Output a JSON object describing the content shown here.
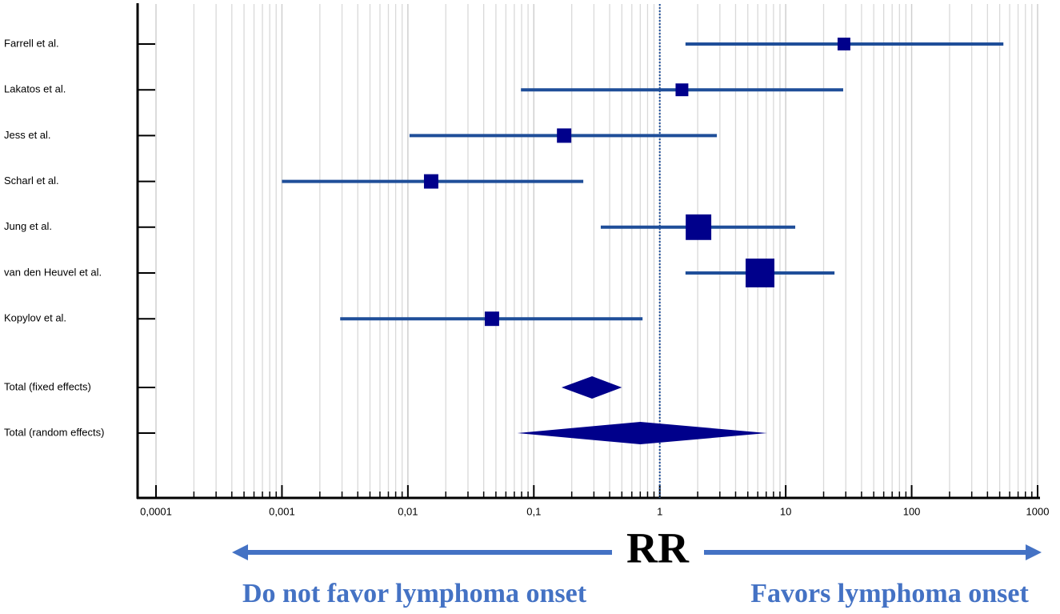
{
  "chart_data": {
    "type": "forest",
    "xlabel": "RR",
    "annotations": [
      "Do not favor lymphoma onset",
      "Favors lymphoma onset"
    ],
    "categories": [
      "Farrell et al.",
      "Lakatos et al.",
      "Jess et al.",
      "Scharl et al.",
      "Jung et al.",
      "van den Heuvel et al.",
      "Kopylov et al.",
      "Total (fixed effects)",
      "Total (random effects)"
    ],
    "values": [
      29,
      1.5,
      0.174,
      0.0153,
      2.03,
      6.25,
      0.0465,
      0.29,
      0.7
    ],
    "ci_low": [
      1.6,
      0.079,
      0.0103,
      0.001,
      0.34,
      1.6,
      0.0029,
      0.166,
      0.074
    ],
    "ci_high": [
      535,
      28.6,
      2.84,
      0.247,
      11.9,
      24.4,
      0.73,
      0.5,
      7.1
    ],
    "weights": [
      6.7,
      6.7,
      8.5,
      8.5,
      26.9,
      34.1,
      8.5,
      null,
      null
    ],
    "xscale": "log",
    "xlim": [
      0.0001,
      1000
    ],
    "xticks": [
      {
        "value": 0.0001,
        "label": "0,0001"
      },
      {
        "value": 0.001,
        "label": "0,001"
      },
      {
        "value": 0.01,
        "label": "0,01"
      },
      {
        "value": 0.1,
        "label": "0,1"
      },
      1,
      10,
      100,
      1000
    ],
    "xminorticks": [
      0.0002,
      0.0003,
      0.0004,
      0.0005,
      0.0006,
      0.0007,
      0.0008,
      0.0009,
      0.002,
      0.003,
      0.004,
      0.005,
      0.006,
      0.007,
      0.008,
      0.009,
      0.02,
      0.03,
      0.04,
      0.05,
      0.06,
      0.07,
      0.08,
      0.09,
      0.2,
      0.3,
      0.4,
      0.5,
      0.6,
      0.7,
      0.8,
      0.9,
      2,
      3,
      4,
      5,
      6,
      7,
      8,
      9,
      20,
      30,
      40,
      50,
      60,
      70,
      80,
      90,
      200,
      300,
      400,
      500,
      600,
      700,
      800,
      900
    ],
    "reference_line": 1,
    "grid": true,
    "line_color": "#1f4e99",
    "marker_color": "#00008b",
    "annotation_color": "#4472c4"
  }
}
